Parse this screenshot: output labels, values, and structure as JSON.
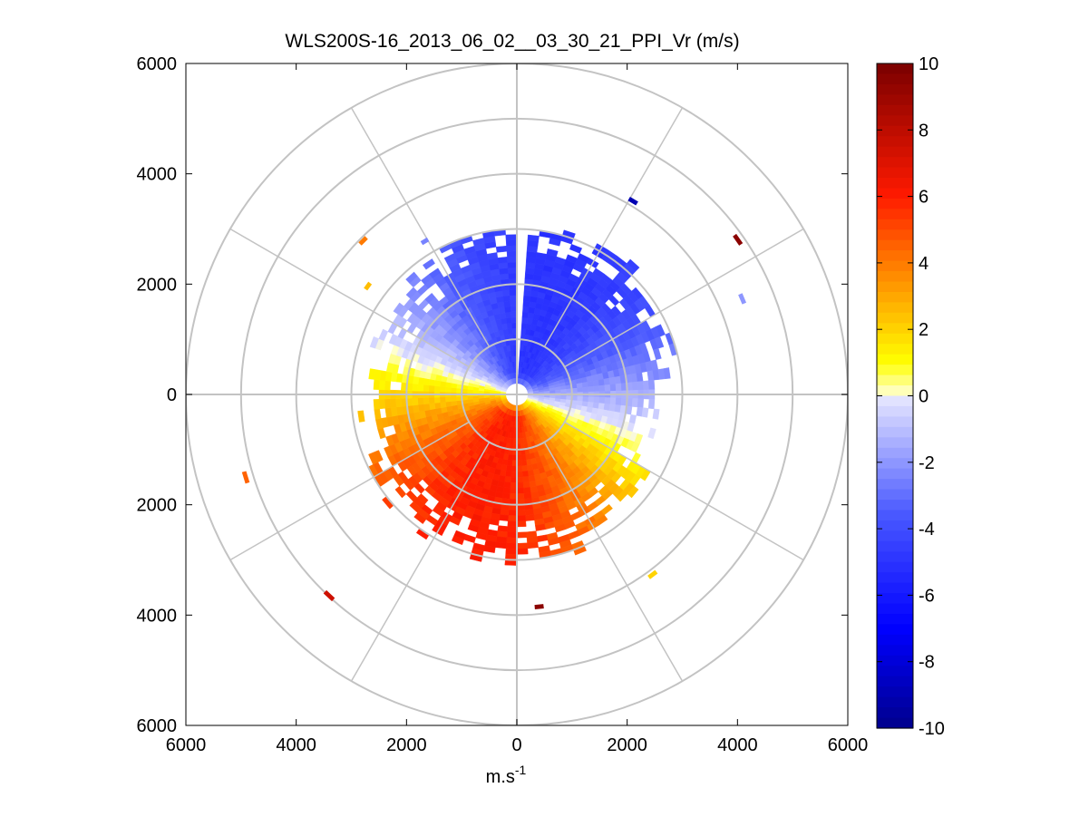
{
  "chart_data": {
    "type": "heatmap",
    "subtype": "polar-ppi",
    "title": "WLS200S-16_2013_06_02__03_30_21_PPI_Vr (m/s)",
    "xlabel_main": "m.s",
    "xlabel_sup": "-1",
    "ylabel": "",
    "xlim": [
      -6000,
      6000
    ],
    "ylim": [
      -6000,
      6000
    ],
    "x_ticks": [
      "6000",
      "4000",
      "2000",
      "0",
      "2000",
      "4000",
      "6000"
    ],
    "y_ticks": [
      "6000",
      "4000",
      "2000",
      "0",
      "2000",
      "4000",
      "6000"
    ],
    "range_rings": [
      1000,
      2000,
      3000,
      4000,
      5000,
      6000
    ],
    "azimuth_spokes_deg": [
      0,
      30,
      60,
      90,
      120,
      150,
      180,
      210,
      240,
      270,
      300,
      330
    ],
    "grid": true,
    "colorbar": {
      "min": -10,
      "max": 10,
      "ticks": [
        "10",
        "8",
        "6",
        "4",
        "2",
        "0",
        "-2",
        "-4",
        "-6",
        "-8",
        "-10"
      ],
      "position": "right"
    },
    "field": {
      "approx_data_range_m": 3000,
      "pattern": "north half negative radial velocity (blue, approx -3 to -6 m/s), south half positive radial velocity (red, approx +4 to +6 m/s); zero crossing along roughly WNW-ESE axis",
      "gap_azimuth_deg": 0
    },
    "isolated_gates": [
      {
        "azimuth_deg": 31,
        "range_m": 4050,
        "value": -9
      },
      {
        "azimuth_deg": 55,
        "range_m": 4850,
        "value": 9.5
      },
      {
        "azimuth_deg": 67,
        "range_m": 4400,
        "value": -2
      },
      {
        "azimuth_deg": 315,
        "range_m": 3900,
        "value": 4
      },
      {
        "azimuth_deg": 306,
        "range_m": 3300,
        "value": 2.5
      },
      {
        "azimuth_deg": 253,
        "range_m": 5100,
        "value": 4.5
      },
      {
        "azimuth_deg": 223,
        "range_m": 4950,
        "value": 7.5
      },
      {
        "azimuth_deg": 174,
        "range_m": 3830,
        "value": 9.5
      },
      {
        "azimuth_deg": 143,
        "range_m": 4050,
        "value": 2
      },
      {
        "azimuth_deg": 329,
        "range_m": 3200,
        "value": -2.5
      }
    ]
  }
}
